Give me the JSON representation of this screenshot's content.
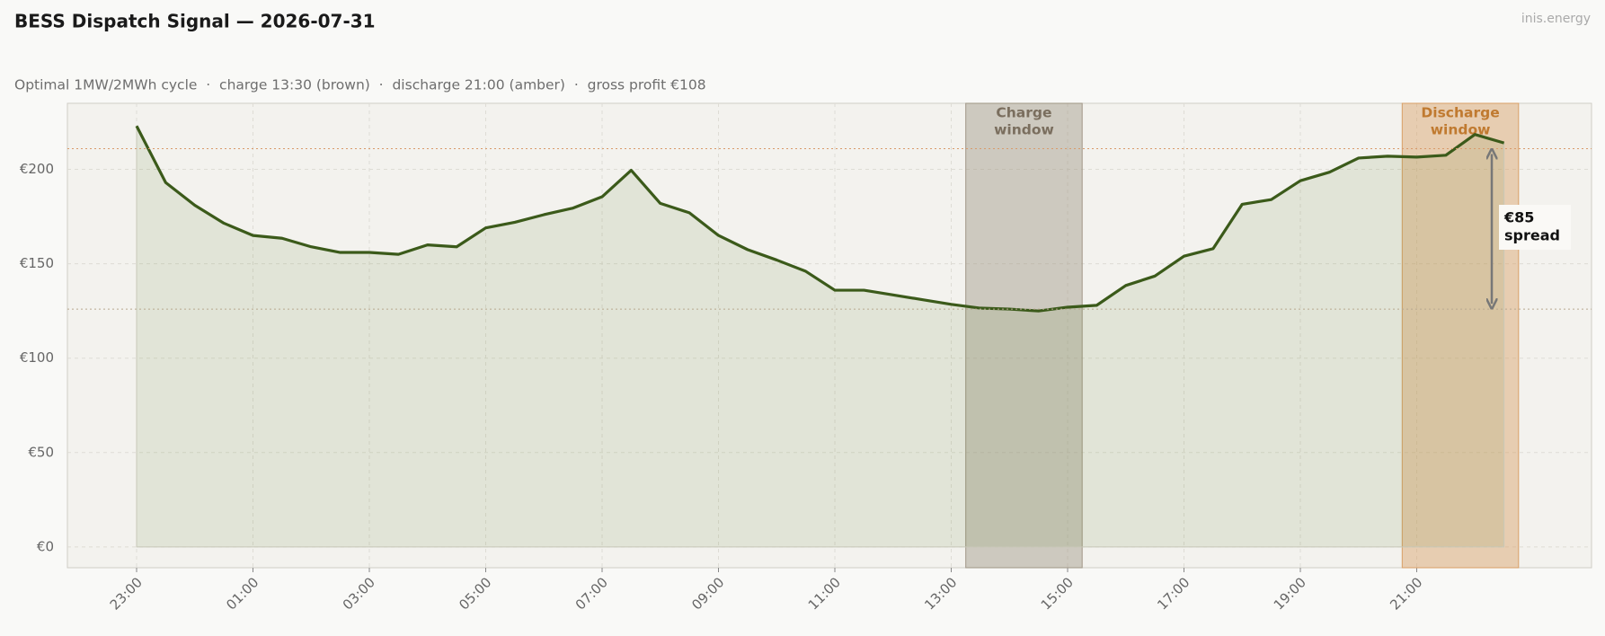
{
  "chart_data": {
    "type": "line",
    "title": "BESS Dispatch Signal — 2026-07-31",
    "subtitle": "Optimal 1MW/2MWh cycle  ·  charge 13:30 (brown)  ·  discharge 21:00 (amber)  ·  gross profit €108",
    "watermark": "inis.energy",
    "categories": [
      "23:00",
      null,
      null,
      null,
      "01:00",
      null,
      null,
      null,
      "03:00",
      null,
      null,
      null,
      "05:00",
      null,
      null,
      null,
      "07:00",
      null,
      null,
      null,
      "09:00",
      null,
      null,
      null,
      "11:00",
      null,
      null,
      null,
      "13:00",
      null,
      null,
      null,
      "15:00",
      null,
      null,
      null,
      "17:00",
      null,
      null,
      null,
      "19:00",
      null,
      null,
      null,
      "21:00",
      null,
      null,
      null
    ],
    "series": [
      {
        "color": "#3b5a1a",
        "values": [
          223,
          193,
          181,
          171.5,
          165,
          163.5,
          159,
          156,
          156,
          155,
          160,
          159,
          169,
          172,
          176,
          179.5,
          185.5,
          199.5,
          182,
          177,
          165,
          157.5,
          152,
          146,
          136,
          136,
          133.5,
          131,
          128.5,
          126.5,
          126,
          125,
          127,
          128,
          138.5,
          143.5,
          154,
          158,
          181.5,
          184,
          194,
          198.5,
          206,
          207,
          206.5,
          207.5,
          218.5,
          214
        ]
      }
    ],
    "ylim": [
      -11,
      235
    ],
    "yticks": [
      {
        "value": 0,
        "label": "€0"
      },
      {
        "value": 50,
        "label": "€50"
      },
      {
        "value": 100,
        "label": "€100"
      },
      {
        "value": 150,
        "label": "€150"
      },
      {
        "value": 200,
        "label": "€200"
      }
    ],
    "grid": true,
    "windows": [
      {
        "label": [
          "Charge",
          "window"
        ],
        "span": [
          28.5,
          32.5
        ],
        "color": "#a09686",
        "text_color": "#7a6e5e"
      },
      {
        "label": [
          "Discharge",
          "window"
        ],
        "span": [
          43.5,
          47.5
        ],
        "color": "#d9a066",
        "text_color": "#c07a30"
      }
    ],
    "ref_lines": [
      126,
      211
    ],
    "annotation": [
      "€85",
      "spread"
    ]
  }
}
